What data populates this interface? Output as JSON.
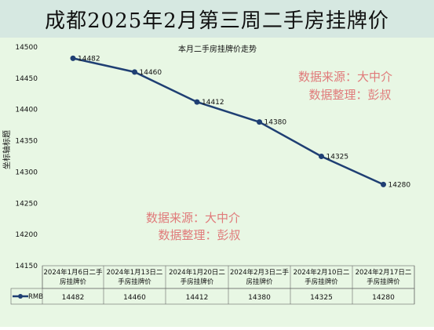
{
  "page": {
    "title": "成都2025年2月第三周二手房挂牌价"
  },
  "watermarks": [
    {
      "line1": "数据来源：大中介",
      "line2": "数据整理：彭叔"
    },
    {
      "line1": "数据来源：大中介",
      "line2": "数据整理：彭叔"
    }
  ],
  "chart_data": {
    "type": "line",
    "title": "本月二手房挂牌价走势",
    "ylabel": "坐标轴标题",
    "xlabel": "",
    "ylim": [
      14150,
      14500
    ],
    "yticks": [
      14150,
      14200,
      14250,
      14300,
      14350,
      14400,
      14450,
      14500
    ],
    "grid": false,
    "categories": [
      "2024年1月6日二手房挂牌价",
      "2024年1月13日二手房挂牌价",
      "2024年1月20日二手房挂牌价",
      "2024年2月3日二手房挂牌价",
      "2024年2月10日二手房挂牌价",
      "2024年2月17日二手房挂牌价"
    ],
    "series": [
      {
        "name": "RMB",
        "values": [
          14482,
          14460,
          14412,
          14380,
          14325,
          14280
        ]
      }
    ],
    "line_color": "#1f3f73",
    "watermark_color": "#e07a7a"
  }
}
